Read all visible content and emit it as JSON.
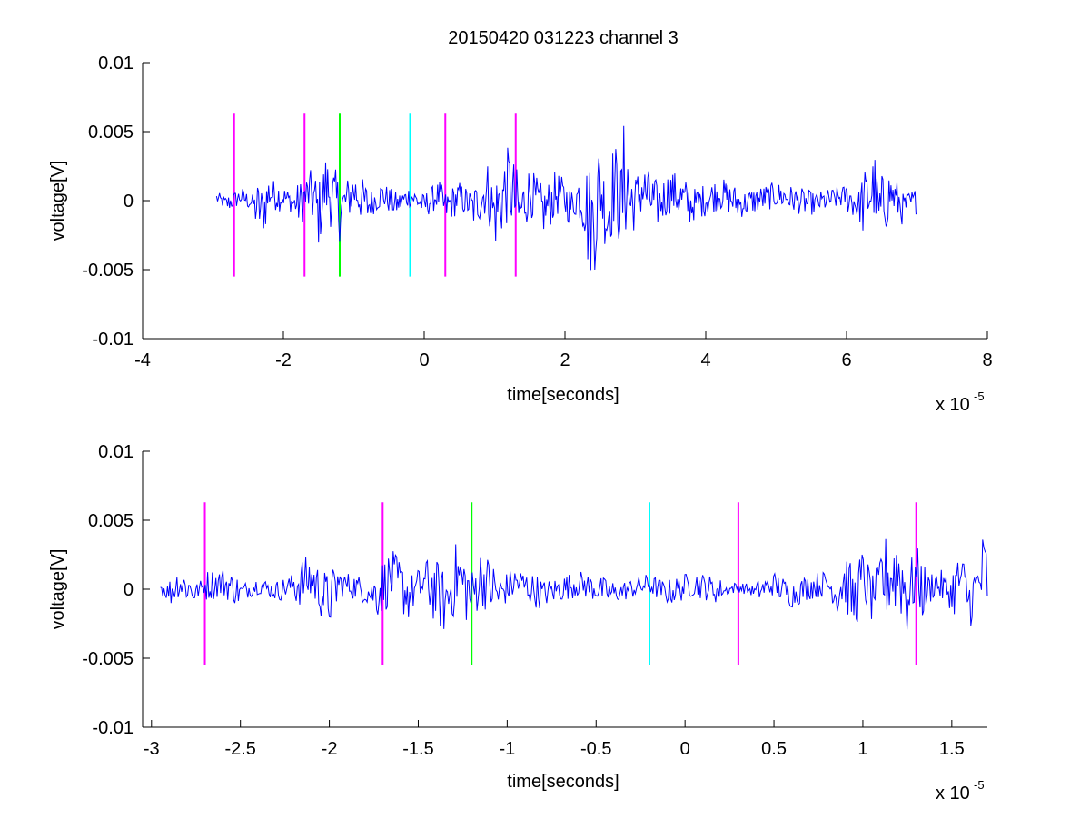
{
  "chart_data": [
    {
      "type": "line",
      "title": "20150420 031223 channel 3",
      "xlabel": "time[seconds]",
      "ylabel": "voltage[V]",
      "x_multiplier_label": "x 10",
      "x_multiplier_exponent": "-5",
      "xlim": [
        -4,
        8
      ],
      "ylim": [
        -0.01,
        0.01
      ],
      "xticks": [
        -4,
        -2,
        0,
        2,
        4,
        6,
        8
      ],
      "xtick_labels": [
        "-4",
        "-2",
        "0",
        "2",
        "4",
        "6",
        "8"
      ],
      "yticks": [
        -0.01,
        -0.005,
        0,
        0.005,
        0.01
      ],
      "ytick_labels": [
        "-0.01",
        "-0.005",
        "0",
        "0.005",
        "0.01"
      ],
      "grid": false,
      "signal": {
        "color": "#0000ff",
        "x_range": [
          -2.95,
          7.0
        ],
        "points": [
          [
            -2.95,
            0.0005
          ],
          [
            -2.8,
            -0.0006
          ],
          [
            -2.6,
            0.0008
          ],
          [
            -2.4,
            -0.0008
          ],
          [
            -2.3,
            -0.0023
          ],
          [
            -2.2,
            0.0014
          ],
          [
            -2.0,
            0.0008
          ],
          [
            -1.8,
            -0.001
          ],
          [
            -1.6,
            0.002
          ],
          [
            -1.5,
            -0.003
          ],
          [
            -1.4,
            0.003
          ],
          [
            -1.2,
            -0.0018
          ],
          [
            -1.0,
            0.002
          ],
          [
            -0.8,
            -0.001
          ],
          [
            -0.6,
            0.0012
          ],
          [
            -0.4,
            -0.0009
          ],
          [
            -0.2,
            0.001
          ],
          [
            0.0,
            -0.001
          ],
          [
            0.2,
            0.0012
          ],
          [
            0.3,
            -0.0015
          ],
          [
            0.5,
            0.0008
          ],
          [
            0.7,
            -0.0014
          ],
          [
            0.9,
            0.002
          ],
          [
            1.0,
            -0.0028
          ],
          [
            1.2,
            0.0035
          ],
          [
            1.35,
            -0.0025
          ],
          [
            1.5,
            0.002
          ],
          [
            1.7,
            -0.0022
          ],
          [
            1.9,
            0.0018
          ],
          [
            2.1,
            -0.0014
          ],
          [
            2.2,
            0.0016
          ],
          [
            2.3,
            -0.0025
          ],
          [
            2.4,
            -0.005
          ],
          [
            2.5,
            0.003
          ],
          [
            2.6,
            -0.0035
          ],
          [
            2.7,
            0.004
          ],
          [
            2.8,
            -0.002
          ],
          [
            2.85,
            0.0057
          ],
          [
            2.95,
            -0.0015
          ],
          [
            3.1,
            0.0025
          ],
          [
            3.3,
            -0.0012
          ],
          [
            3.5,
            0.002
          ],
          [
            3.8,
            -0.001
          ],
          [
            4.2,
            0.0015
          ],
          [
            4.5,
            -0.0008
          ],
          [
            5.0,
            0.0012
          ],
          [
            5.5,
            -0.0007
          ],
          [
            6.0,
            0.001
          ],
          [
            6.2,
            -0.0015
          ],
          [
            6.4,
            0.003
          ],
          [
            6.45,
            -0.003
          ],
          [
            6.6,
            0.0018
          ],
          [
            6.8,
            -0.0012
          ],
          [
            7.0,
            0.0
          ]
        ]
      },
      "markers": [
        {
          "x": -2.7,
          "color": "#ff00ff"
        },
        {
          "x": -1.7,
          "color": "#ff00ff"
        },
        {
          "x": -1.2,
          "color": "#00ff00"
        },
        {
          "x": -0.2,
          "color": "#00ffff"
        },
        {
          "x": 0.3,
          "color": "#ff00ff"
        },
        {
          "x": 1.3,
          "color": "#ff00ff"
        }
      ],
      "marker_y_range": [
        -0.0055,
        0.0063
      ]
    },
    {
      "type": "line",
      "title": "",
      "xlabel": "time[seconds]",
      "ylabel": "voltage[V]",
      "x_multiplier_label": "x 10",
      "x_multiplier_exponent": "-5",
      "xlim": [
        -3.05,
        1.7
      ],
      "ylim": [
        -0.01,
        0.01
      ],
      "xticks": [
        -3,
        -2.5,
        -2,
        -1.5,
        -1,
        -0.5,
        0,
        0.5,
        1,
        1.5
      ],
      "xtick_labels": [
        "-3",
        "-2.5",
        "-2",
        "-1.5",
        "-1",
        "-0.5",
        "0",
        "0.5",
        "1",
        "1.5"
      ],
      "yticks": [
        -0.01,
        -0.005,
        0,
        0.005,
        0.01
      ],
      "ytick_labels": [
        "-0.01",
        "-0.005",
        "0",
        "0.005",
        "0.01"
      ],
      "grid": false,
      "signal": {
        "color": "#0000ff",
        "x_range": [
          -2.95,
          1.7
        ],
        "points": [
          [
            -2.95,
            0.0005
          ],
          [
            -2.9,
            -0.0008
          ],
          [
            -2.85,
            0.0014
          ],
          [
            -2.75,
            -0.0006
          ],
          [
            -2.7,
            0.0008
          ],
          [
            -2.6,
            0.0014
          ],
          [
            -2.5,
            -0.0006
          ],
          [
            -2.4,
            0.0008
          ],
          [
            -2.3,
            -0.0005
          ],
          [
            -2.2,
            0.001
          ],
          [
            -2.1,
            0.0022
          ],
          [
            -2.05,
            -0.0005
          ],
          [
            -2.0,
            -0.0024
          ],
          [
            -1.95,
            0.0012
          ],
          [
            -1.85,
            0.0005
          ],
          [
            -1.75,
            -0.0012
          ],
          [
            -1.65,
            0.0025
          ],
          [
            -1.55,
            -0.0012
          ],
          [
            -1.45,
            0.0018
          ],
          [
            -1.35,
            -0.003
          ],
          [
            -1.28,
            0.0032
          ],
          [
            -1.2,
            -0.0018
          ],
          [
            -1.15,
            0.0026
          ],
          [
            -1.05,
            -0.001
          ],
          [
            -0.95,
            0.0015
          ],
          [
            -0.8,
            -0.001
          ],
          [
            -0.6,
            0.0012
          ],
          [
            -0.4,
            -0.0009
          ],
          [
            -0.25,
            0.0006
          ],
          [
            -0.2,
            0.001
          ],
          [
            -0.1,
            -0.0008
          ],
          [
            0.05,
            0.0012
          ],
          [
            0.2,
            -0.0005
          ],
          [
            0.3,
            0.0005
          ],
          [
            0.4,
            -0.0005
          ],
          [
            0.5,
            0.001
          ],
          [
            0.6,
            -0.0012
          ],
          [
            0.7,
            0.0006
          ],
          [
            0.8,
            0.0012
          ],
          [
            0.85,
            -0.0012
          ],
          [
            0.9,
            0.0022
          ],
          [
            0.95,
            -0.0028
          ],
          [
            1.0,
            0.0025
          ],
          [
            1.05,
            -0.0015
          ],
          [
            1.1,
            0.0018
          ],
          [
            1.2,
            0.0039
          ],
          [
            1.25,
            -0.0015
          ],
          [
            1.3,
            0.0028
          ],
          [
            1.35,
            -0.0012
          ],
          [
            1.4,
            0.0015
          ],
          [
            1.5,
            -0.0008
          ],
          [
            1.55,
            0.0025
          ],
          [
            1.6,
            -0.0025
          ],
          [
            1.65,
            0.001
          ],
          [
            1.68,
            0.0038
          ],
          [
            1.7,
            0.002
          ]
        ]
      },
      "markers": [
        {
          "x": -2.7,
          "color": "#ff00ff"
        },
        {
          "x": -1.7,
          "color": "#ff00ff"
        },
        {
          "x": -1.2,
          "color": "#00ff00"
        },
        {
          "x": -0.2,
          "color": "#00ffff"
        },
        {
          "x": 0.3,
          "color": "#ff00ff"
        },
        {
          "x": 1.3,
          "color": "#ff00ff"
        }
      ],
      "marker_y_range": [
        -0.0055,
        0.0063
      ]
    }
  ]
}
